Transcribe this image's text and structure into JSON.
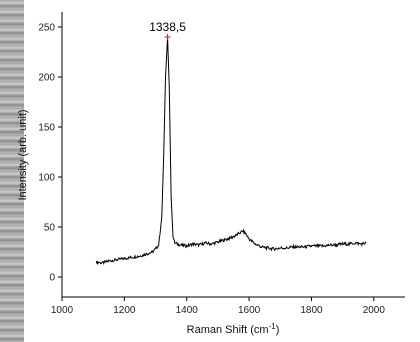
{
  "chart_data": {
    "type": "line",
    "xlabel": "Raman Shift (cm",
    "xlabel_sup": "-1",
    "xlabel_end": ")",
    "ylabel": "Intensity (arb. unit)",
    "xlim": [
      1000,
      2100
    ],
    "ylim": [
      -20,
      265
    ],
    "x_ticks": [
      1000,
      1200,
      1400,
      1600,
      1800,
      2000
    ],
    "y_ticks": [
      0,
      50,
      100,
      150,
      200,
      250
    ],
    "grid": false,
    "annotation": {
      "text": "1338,5",
      "x": 1338.5,
      "y": 240
    },
    "series": [
      {
        "color": "#000000",
        "points": [
          [
            1110,
            15
          ],
          [
            1130,
            14
          ],
          [
            1150,
            16
          ],
          [
            1170,
            17
          ],
          [
            1190,
            18
          ],
          [
            1210,
            19
          ],
          [
            1230,
            20
          ],
          [
            1250,
            21
          ],
          [
            1270,
            23
          ],
          [
            1290,
            25
          ],
          [
            1300,
            28
          ],
          [
            1310,
            32
          ],
          [
            1320,
            60
          ],
          [
            1326,
            120
          ],
          [
            1332,
            200
          ],
          [
            1338.5,
            240
          ],
          [
            1344,
            190
          ],
          [
            1350,
            80
          ],
          [
            1356,
            40
          ],
          [
            1362,
            34
          ],
          [
            1380,
            32
          ],
          [
            1400,
            31
          ],
          [
            1420,
            33
          ],
          [
            1440,
            32
          ],
          [
            1460,
            34
          ],
          [
            1480,
            33
          ],
          [
            1500,
            35
          ],
          [
            1520,
            37
          ],
          [
            1540,
            39
          ],
          [
            1560,
            42
          ],
          [
            1580,
            46
          ],
          [
            1590,
            43
          ],
          [
            1600,
            38
          ],
          [
            1620,
            33
          ],
          [
            1640,
            30
          ],
          [
            1660,
            29
          ],
          [
            1680,
            28
          ],
          [
            1700,
            29
          ],
          [
            1720,
            29
          ],
          [
            1740,
            30
          ],
          [
            1760,
            30
          ],
          [
            1780,
            30
          ],
          [
            1800,
            31
          ],
          [
            1820,
            31
          ],
          [
            1840,
            31
          ],
          [
            1860,
            32
          ],
          [
            1880,
            32
          ],
          [
            1900,
            33
          ],
          [
            1920,
            33
          ],
          [
            1940,
            34
          ],
          [
            1960,
            33
          ],
          [
            1975,
            34
          ]
        ]
      }
    ]
  }
}
